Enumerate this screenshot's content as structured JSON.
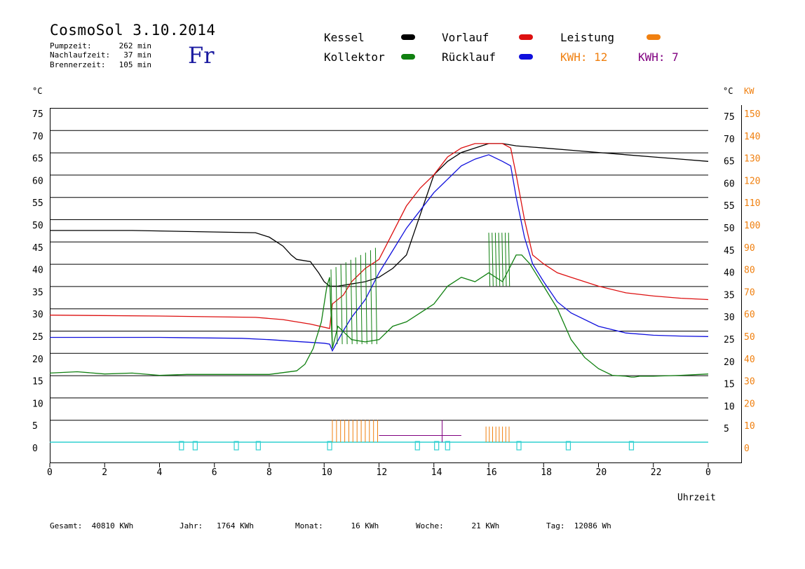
{
  "title": "CosmoSol 3.10.2014",
  "day": "Fr",
  "info": [
    {
      "label": "Pumpzeit:",
      "value": "262 min"
    },
    {
      "label": "Nachlaufzeit:",
      "value": "37 min"
    },
    {
      "label": "Brennerzeit:",
      "value": "105 min"
    }
  ],
  "legend": {
    "kessel": {
      "label": "Kessel",
      "color": "#000000"
    },
    "vorlauf": {
      "label": "Vorlauf",
      "color": "#dd1010"
    },
    "leistung": {
      "label": "Leistung",
      "color": "#f08010"
    },
    "kollektor": {
      "label": "Kollektor",
      "color": "#108010"
    },
    "ruecklauf": {
      "label": "Rücklauf",
      "color": "#1010dd"
    },
    "kwh1": "KWH: 12",
    "kwh2": "KWH: 7",
    "kwh1_color": "#f08010",
    "kwh2_color": "#800080"
  },
  "footer": [
    {
      "label": "Gesamt:",
      "value": "40810 KWh"
    },
    {
      "label": "Jahr:",
      "value": "1764 KWh"
    },
    {
      "label": "Monat:",
      "value": "16 KWh"
    },
    {
      "label": "Woche:",
      "value": "21 KWh"
    },
    {
      "label": "Tag:",
      "value": "12086 Wh"
    }
  ],
  "chart_data": {
    "type": "line",
    "xlabel": "Uhrzeit",
    "ylabel_left": "°C",
    "ylabel_right_unit": "°C",
    "ylabel_right_kw": "KW",
    "xlim": [
      0,
      24
    ],
    "ylim": [
      0,
      75
    ],
    "grid": true,
    "x_ticks": [
      "0",
      "2",
      "4",
      "6",
      "8",
      "10",
      "12",
      "14",
      "16",
      "18",
      "20",
      "22",
      "0"
    ],
    "y_ticks": [
      0,
      5,
      10,
      15,
      20,
      25,
      30,
      35,
      40,
      45,
      50,
      55,
      60,
      65,
      70,
      75
    ],
    "kw_ticks": [
      0,
      10,
      20,
      30,
      40,
      50,
      60,
      70,
      80,
      90,
      100,
      110,
      120,
      130,
      140,
      150
    ],
    "series": [
      {
        "name": "Kessel",
        "color": "#000000",
        "x": [
          0,
          3,
          7.5,
          8,
          8.5,
          8.8,
          9,
          9.5,
          9.8,
          10,
          10.2,
          10.5,
          11,
          11.5,
          12,
          12.5,
          13,
          14,
          14.5,
          15,
          15.5,
          16,
          16.5,
          17,
          18,
          19,
          20,
          21,
          22,
          23,
          24
        ],
        "y": [
          47.5,
          47.5,
          47,
          46,
          44,
          42,
          41,
          40.5,
          38,
          36,
          35,
          35,
          35.5,
          36,
          37,
          39,
          42,
          60,
          63,
          65,
          66,
          67,
          67,
          66.5,
          66,
          65.5,
          65,
          64.5,
          64,
          63.5,
          63
        ]
      },
      {
        "name": "Vorlauf",
        "color": "#dd1010",
        "x": [
          0,
          4,
          7.5,
          8.5,
          9.5,
          10.2,
          10.3,
          10.7,
          11,
          11.5,
          12,
          12.5,
          13,
          13.5,
          14,
          14.5,
          15,
          15.5,
          16,
          16.5,
          16.8,
          17,
          17.3,
          17.6,
          18,
          18.5,
          19,
          20,
          21,
          22,
          23,
          24
        ],
        "y": [
          28.5,
          28.3,
          28,
          27.5,
          26.5,
          25.5,
          31,
          33,
          36,
          39,
          41,
          47,
          53,
          57,
          60,
          64,
          66,
          67,
          67,
          67,
          66,
          60,
          50,
          42,
          40,
          38,
          37,
          35,
          33.5,
          32.8,
          32.3,
          32
        ]
      },
      {
        "name": "Rücklauf",
        "color": "#1010dd",
        "x": [
          0,
          4,
          7,
          8,
          9,
          10,
          10.2,
          10.3,
          10.7,
          11,
          11.5,
          12,
          12.5,
          13,
          13.5,
          14,
          14.5,
          15,
          15.5,
          16,
          16.5,
          16.8,
          17,
          17.3,
          17.6,
          18,
          18.5,
          19,
          20,
          21,
          22,
          23,
          24
        ],
        "y": [
          23.5,
          23.5,
          23.3,
          23,
          22.6,
          22.2,
          22,
          20.5,
          25,
          28,
          32,
          38,
          43,
          48,
          52,
          56,
          59,
          62,
          63.5,
          64.5,
          63,
          62,
          55,
          46,
          40,
          36,
          31.5,
          29,
          26,
          24.5,
          24,
          23.8,
          23.7
        ]
      },
      {
        "name": "Kollektor",
        "color": "#108010",
        "x": [
          0,
          1,
          2,
          3,
          4,
          5,
          6,
          7,
          8,
          9,
          9.3,
          9.6,
          9.9,
          10.1,
          10.2,
          10.3,
          10.5,
          11,
          11.5,
          12,
          12.5,
          13,
          13.5,
          14,
          14.5,
          15,
          15.5,
          16,
          16.5,
          17,
          17.2,
          17.5,
          18,
          18.5,
          19,
          19.5,
          20,
          20.5,
          21,
          21.2,
          21.3,
          21.5,
          22,
          23,
          24
        ],
        "y": [
          15.5,
          15.8,
          15.3,
          15.5,
          15,
          15.2,
          15.2,
          15.2,
          15.2,
          16,
          17.5,
          21,
          27,
          35,
          37,
          21,
          26,
          23,
          22.5,
          23,
          26,
          27,
          29,
          31,
          35,
          37,
          36,
          38,
          36,
          42,
          42,
          40,
          35,
          30,
          23,
          19,
          16.5,
          15,
          14.8,
          14.6,
          14.6,
          14.8,
          14.8,
          15,
          15.3
        ]
      }
    ],
    "cyan_level": 0,
    "bottom_labels": [
      "5"
    ]
  }
}
